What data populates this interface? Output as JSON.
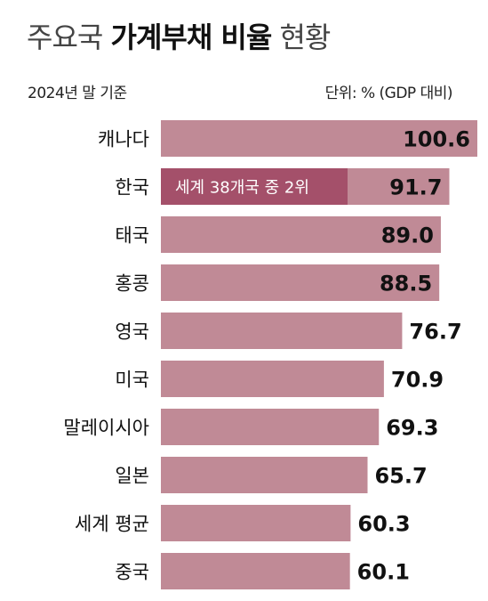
{
  "title": {
    "prefix": "주요국",
    "highlight": "가계부채 비율",
    "suffix": "현황"
  },
  "note_left": "2024년 말 기준",
  "note_right": "단위: % (GDP 대비)",
  "colors": {
    "bar": "#c08a96",
    "highlight_bar": "#a4506a",
    "annotation_text": "#ffffff"
  },
  "chart_data": {
    "type": "bar",
    "orientation": "horizontal",
    "categories": [
      "캐나다",
      "한국",
      "태국",
      "홍콩",
      "영국",
      "미국",
      "말레이시아",
      "일본",
      "세계 평균",
      "중국"
    ],
    "values": [
      100.6,
      91.7,
      89.0,
      88.5,
      76.7,
      70.9,
      69.3,
      65.7,
      60.3,
      60.1
    ],
    "value_labels": [
      "100.6",
      "91.7",
      "89.0",
      "88.5",
      "76.7",
      "70.9",
      "69.3",
      "65.7",
      "60.3",
      "60.1"
    ],
    "highlight_index": 1,
    "annotation": "세계 38개국 중 2위",
    "xlim": [
      0,
      100.6
    ],
    "grid": false,
    "legend": "none"
  }
}
